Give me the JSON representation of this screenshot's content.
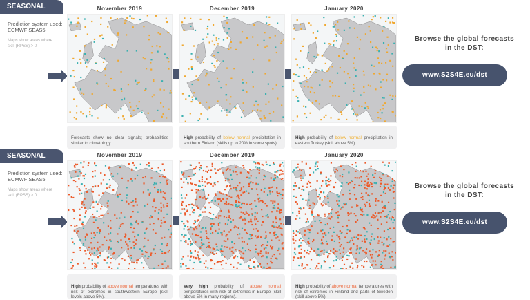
{
  "panels": [
    {
      "tab": "SEASONAL",
      "prediction": "Prediction system used:",
      "system": "ECMWF SEAS5",
      "skill_note": "Maps show areas where skill (RPSS) > 0",
      "variable": "precipitation",
      "dot_colors": [
        "#f0a830",
        "#3ab0b0"
      ],
      "months": [
        "November 2019",
        "December 2019",
        "January 2020"
      ],
      "captions": [
        {
          "bold": "",
          "pre": "Forecasts show no clear signals; probabilities similar to climatology.",
          "hl": "",
          "post": ""
        },
        {
          "bold": "High",
          "pre": " probability of ",
          "hl": "below normal",
          "post": " precipitation in southern Finland (skills up to 20% in some spots)."
        },
        {
          "bold": "High",
          "pre": " probability of ",
          "hl": "below normal",
          "post": " precipitation in eastern Turkey (skill above 5%)."
        }
      ],
      "browse": "Browse the global forecasts in the DST:",
      "dst_button": "www.S2S4E.eu/dst"
    },
    {
      "tab": "SEASONAL",
      "prediction": "Prediction system used:",
      "system": "ECMWF SEAS5",
      "skill_note": "Maps show areas where skill (RPSS) > 0",
      "variable": "temperature",
      "dot_colors": [
        "#ec5a2a",
        "#3ab0b0"
      ],
      "months": [
        "November 2019",
        "December 2019",
        "January 2020"
      ],
      "captions": [
        {
          "bold": "High",
          "pre": " probability of ",
          "hl": "above normal",
          "post": " temperatures with risk of extremes in southwestern Europe (skill levels above 5%)."
        },
        {
          "bold": "Very high",
          "pre": " probability of ",
          "hl": "above normal",
          "post": " temperatures with risk of extremes in Europe (skill above 5% in many regions)."
        },
        {
          "bold": "High",
          "pre": " probability of ",
          "hl": "above normal",
          "post": " temperatures with risk of extremes in Finland and parts of Sweden (skill above 5%)."
        }
      ],
      "browse": "Browse the global forecasts in the DST:",
      "dst_button": "www.S2S4E.eu/dst"
    }
  ]
}
